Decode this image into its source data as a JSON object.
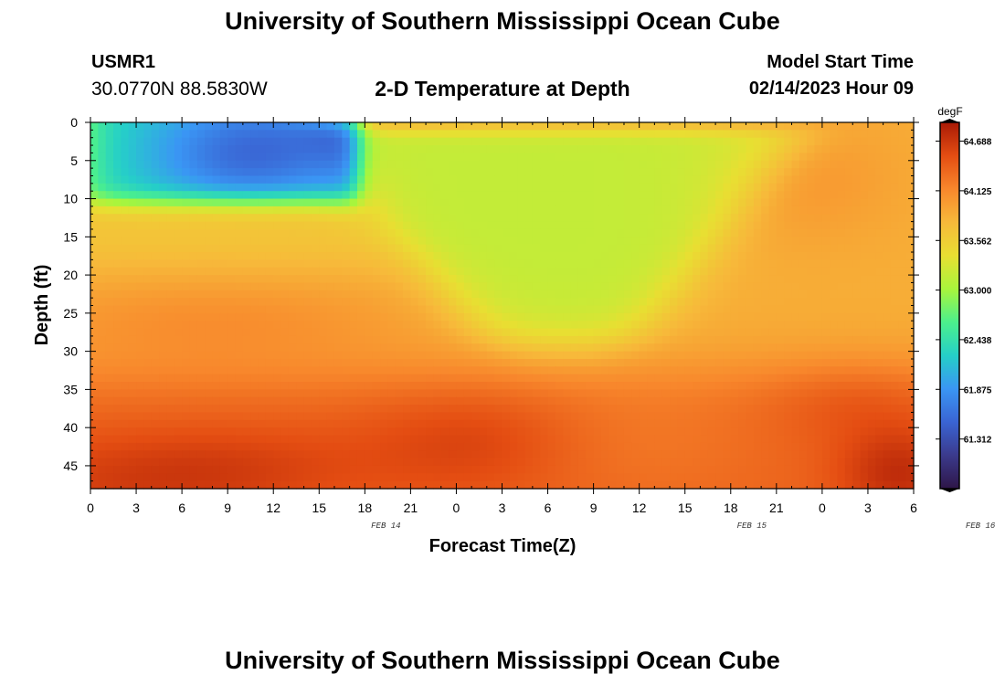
{
  "header": {
    "title": "University of Southern Mississippi Ocean Cube",
    "station_id": "USMR1",
    "station_coords": "30.0770N  88.5830W",
    "chart_title": "2-D Temperature at Depth",
    "model_start_label": "Model Start Time",
    "model_start_value": "02/14/2023 Hour 09"
  },
  "footer": {
    "title": "University of Southern Mississippi Ocean Cube"
  },
  "chart_data": {
    "type": "heatmap",
    "title": "2-D Temperature at Depth",
    "xlabel": "Forecast Time(Z)",
    "ylabel": "Depth (ft)",
    "x_tick_labels": [
      "0",
      "3",
      "6",
      "9",
      "12",
      "15",
      "18",
      "21",
      "0",
      "3",
      "6",
      "9",
      "12",
      "15",
      "18",
      "21",
      "0",
      "3",
      "6"
    ],
    "date_labels": [
      {
        "label": "FEB 14",
        "x_index": 6.5
      },
      {
        "label": "FEB 15",
        "x_index": 14.5
      },
      {
        "label": "FEB 16",
        "x_index": 19.5
      }
    ],
    "x_range_hours": [
      0,
      54
    ],
    "y_tick_labels": [
      "0",
      "5",
      "10",
      "15",
      "20",
      "25",
      "30",
      "35",
      "40",
      "45"
    ],
    "y_range_ft": [
      0,
      48
    ],
    "y_inverted": true,
    "colorbar": {
      "unit": "degF",
      "ticks": [
        "64.688",
        "64.125",
        "63.562",
        "63.000",
        "62.438",
        "61.875",
        "61.312"
      ],
      "range": [
        60.75,
        64.9
      ],
      "colormap": [
        "#2e1648",
        "#3b3a8c",
        "#3a64d3",
        "#3a96f4",
        "#25cfc8",
        "#4cf08c",
        "#a9f53c",
        "#e8df32",
        "#f7b93a",
        "#f8872c",
        "#e44d12",
        "#a91a06"
      ]
    },
    "grid": false
  }
}
